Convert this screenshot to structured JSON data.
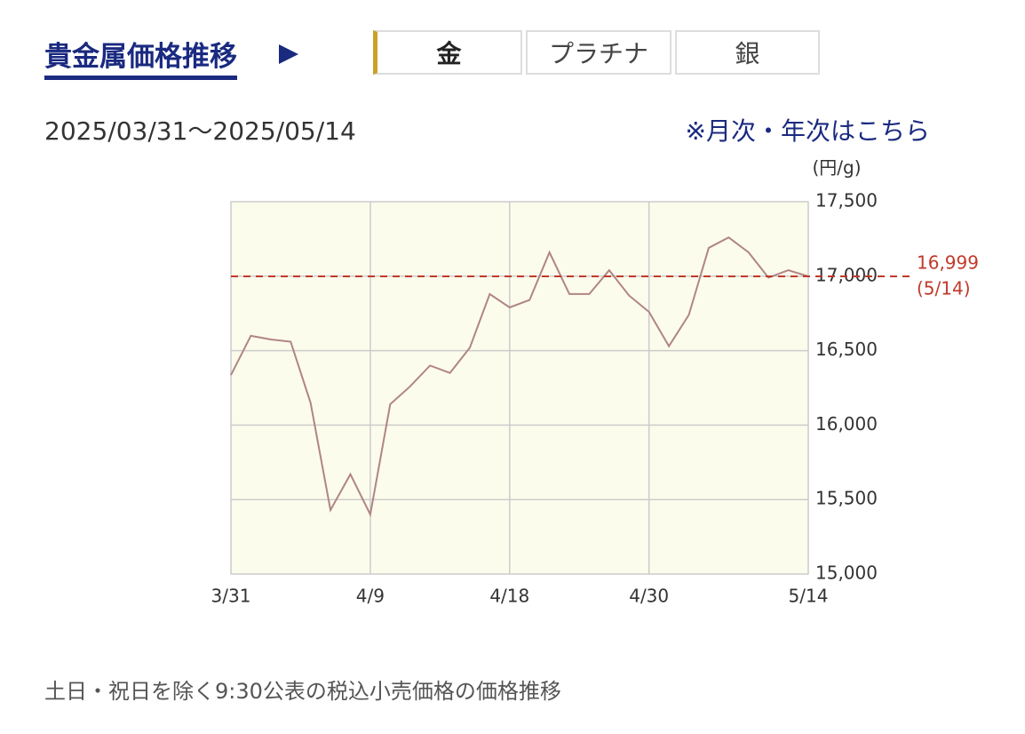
{
  "header": {
    "title": "貴金属価格推移",
    "tabs": [
      "金",
      "プラチナ",
      "銀"
    ],
    "active_tab": 0
  },
  "period": "2025/03/31〜2025/05/14",
  "link": "※月次・年次はこちら",
  "footnote": "土日・祝日を除く9:30公表の税込小売価格の価格推移",
  "chart_data": {
    "type": "line",
    "unit_label": "(円/g)",
    "categories": [
      "3/31",
      null,
      null,
      null,
      null,
      null,
      null,
      "4/9",
      null,
      null,
      null,
      null,
      null,
      null,
      "4/18",
      null,
      null,
      null,
      null,
      null,
      null,
      "4/30",
      null,
      null,
      null,
      null,
      null,
      null,
      null,
      "5/14"
    ],
    "series": [
      {
        "color": "#b08585",
        "values": [
          16336,
          16600,
          16575,
          16560,
          16150,
          15430,
          15670,
          15400,
          16140,
          16260,
          16400,
          16350,
          16520,
          16880,
          16790,
          16840,
          17160,
          16880,
          16880,
          17040,
          16870,
          16760,
          16530,
          16740,
          17190,
          17260,
          17160,
          16990,
          17040,
          16999
        ]
      }
    ],
    "ylim": [
      15000,
      17500
    ],
    "yticks": [
      {
        "value": 15000,
        "label": "15,000"
      },
      {
        "value": 15500,
        "label": "15,500"
      },
      {
        "value": 16000,
        "label": "16,000"
      },
      {
        "value": 16500,
        "label": "16,500"
      },
      {
        "value": 17000,
        "label": "17,000"
      },
      {
        "value": 17500,
        "label": "17,500"
      }
    ],
    "grid": true,
    "plot_background": "#fcfcec",
    "reference": {
      "value": 16999,
      "label": "16,999",
      "date_label": "(5/14)",
      "color": "#c0392b"
    }
  }
}
